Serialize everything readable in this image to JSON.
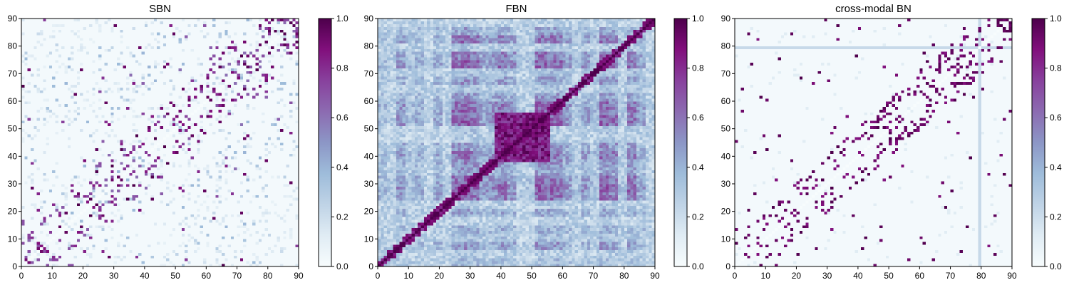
{
  "chart_data": [
    {
      "type": "heatmap",
      "title": "SBN",
      "xlabel": "",
      "ylabel": "",
      "xlim": [
        0,
        90
      ],
      "ylim": [
        0,
        90
      ],
      "x_ticks": [
        "0",
        "10",
        "20",
        "30",
        "40",
        "50",
        "60",
        "70",
        "80",
        "90"
      ],
      "y_ticks": [
        "0",
        "10",
        "20",
        "30",
        "40",
        "50",
        "60",
        "70",
        "80",
        "90"
      ],
      "colorbar": {
        "min": 0.0,
        "max": 1.0,
        "ticks": [
          "0.0",
          "0.2",
          "0.4",
          "0.6",
          "0.8",
          "1.0"
        ],
        "colormap": "BuPu"
      },
      "matrix_size": 90,
      "description_values": {
        "background": 0.03,
        "structure": "sparse symmetric matrix with values near 1.0 along off-diagonal bands"
      }
    },
    {
      "type": "heatmap",
      "title": "FBN",
      "xlabel": "",
      "ylabel": "",
      "xlim": [
        0,
        90
      ],
      "ylim": [
        0,
        90
      ],
      "x_ticks": [
        "0",
        "10",
        "20",
        "30",
        "40",
        "50",
        "60",
        "70",
        "80",
        "90"
      ],
      "y_ticks": [
        "0",
        "10",
        "20",
        "30",
        "40",
        "50",
        "60",
        "70",
        "80",
        "90"
      ],
      "colorbar": {
        "min": 0.0,
        "max": 1.0,
        "ticks": [
          "0.0",
          "0.2",
          "0.4",
          "0.6",
          "0.8",
          "1.0"
        ],
        "colormap": "BuPu"
      },
      "matrix_size": 90,
      "description_values": {
        "background": 0.3,
        "structure": "dense symmetric block matrix, strong block at 40-55"
      }
    },
    {
      "type": "heatmap",
      "title": "cross-modal BN",
      "xlabel": "",
      "ylabel": "",
      "xlim": [
        0,
        90
      ],
      "ylim": [
        0,
        90
      ],
      "x_ticks": [
        "0",
        "10",
        "20",
        "30",
        "40",
        "50",
        "60",
        "70",
        "80",
        "90"
      ],
      "y_ticks": [
        "0",
        "10",
        "20",
        "30",
        "40",
        "50",
        "60",
        "70",
        "80",
        "90"
      ],
      "colorbar": {
        "min": 0.0,
        "max": 1.0,
        "ticks": [
          "0.0",
          "0.2",
          "0.4",
          "0.6",
          "0.8",
          "1.0"
        ],
        "colormap": "BuPu"
      },
      "matrix_size": 90,
      "description_values": {
        "background": 0.02,
        "structure": "sparse binary-like symmetric matrix, light column near x=80"
      }
    }
  ],
  "colors": {
    "colormap_stops": [
      "#f7fcfd",
      "#e0ecf4",
      "#bfd3e6",
      "#9ebcda",
      "#8c96c6",
      "#8c6bb1",
      "#88419d",
      "#810f7c",
      "#4d004b"
    ]
  }
}
